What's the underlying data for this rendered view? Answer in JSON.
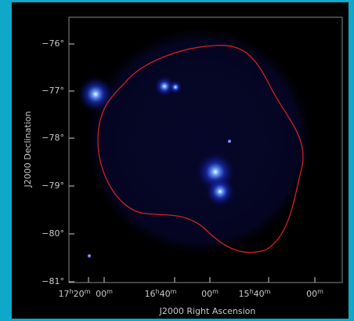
{
  "image": {
    "y_axis": {
      "label": "J2000 Declination",
      "ticks": [
        "−76°",
        "−77°",
        "−78°",
        "−79°",
        "−80°",
        "−81°"
      ]
    },
    "x_axis": {
      "label": "J2000 Right Ascension",
      "ticks": [
        {
          "parts": [
            "17",
            "h",
            "20",
            "m"
          ]
        },
        {
          "parts": [
            "00",
            "m"
          ]
        },
        {
          "parts": [
            "16",
            "h",
            "40",
            "m"
          ]
        },
        {
          "parts": [
            "00",
            "m"
          ]
        },
        {
          "parts": [
            "15",
            "h",
            "40",
            "m"
          ]
        },
        {
          "parts": [
            "00",
            "m"
          ]
        }
      ]
    }
  }
}
